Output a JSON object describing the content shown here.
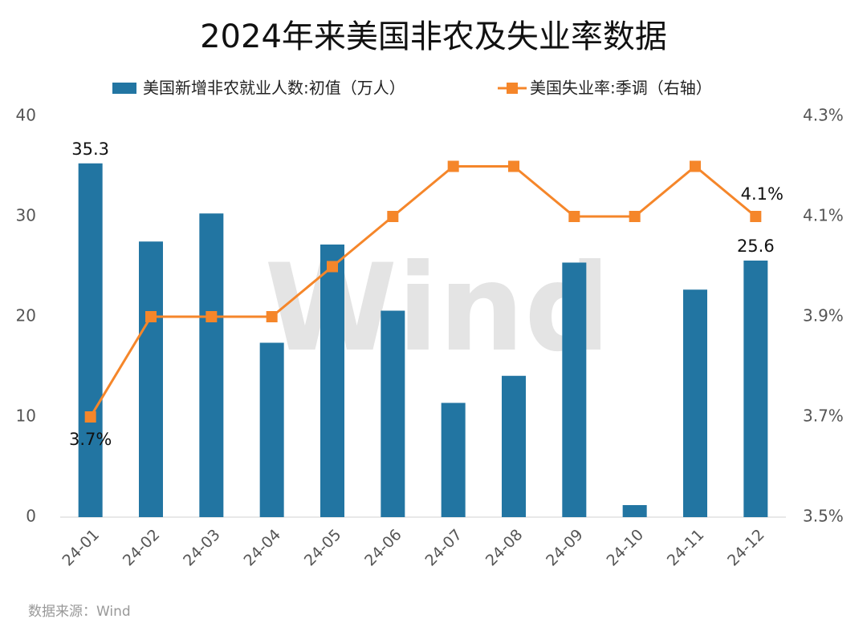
{
  "chart_data": {
    "type": "bar-line",
    "title": "2024年来美国非农及失业率数据",
    "source": "数据来源：Wind",
    "watermark": "Wind",
    "categories": [
      "24-01",
      "24-02",
      "24-03",
      "24-04",
      "24-05",
      "24-06",
      "24-07",
      "24-08",
      "24-09",
      "24-10",
      "24-11",
      "24-12"
    ],
    "series": [
      {
        "name": "美国新增非农就业人数:初值（万人）",
        "type": "bar",
        "color": "#2275a2",
        "axis": "y",
        "values": [
          35.3,
          27.5,
          30.3,
          17.4,
          27.2,
          20.6,
          11.4,
          14.1,
          25.4,
          1.2,
          22.7,
          25.6
        ],
        "value_labels": [
          "35.3",
          null,
          null,
          null,
          null,
          null,
          null,
          null,
          null,
          null,
          null,
          "25.6"
        ]
      },
      {
        "name": "美国失业率:季调（右轴）",
        "type": "line",
        "color": "#f5862a",
        "axis": "y2",
        "values": [
          3.7,
          3.9,
          3.9,
          3.9,
          4.0,
          4.1,
          4.2,
          4.2,
          4.1,
          4.1,
          4.2,
          4.1
        ],
        "value_labels": [
          "3.7%",
          null,
          null,
          null,
          null,
          null,
          null,
          null,
          null,
          null,
          null,
          "4.1%"
        ]
      }
    ],
    "ylim": [
      0,
      40
    ],
    "yticks": [
      0,
      10,
      20,
      30,
      40
    ],
    "y2lim": [
      3.5,
      4.3
    ],
    "y2ticks": [
      {
        "value": 3.5,
        "label": "3.5%"
      },
      {
        "value": 3.7,
        "label": "3.7%"
      },
      {
        "value": 3.9,
        "label": "3.9%"
      },
      {
        "value": 4.1,
        "label": "4.1%"
      },
      {
        "value": 4.3,
        "label": "4.3%"
      }
    ],
    "grid": false
  }
}
